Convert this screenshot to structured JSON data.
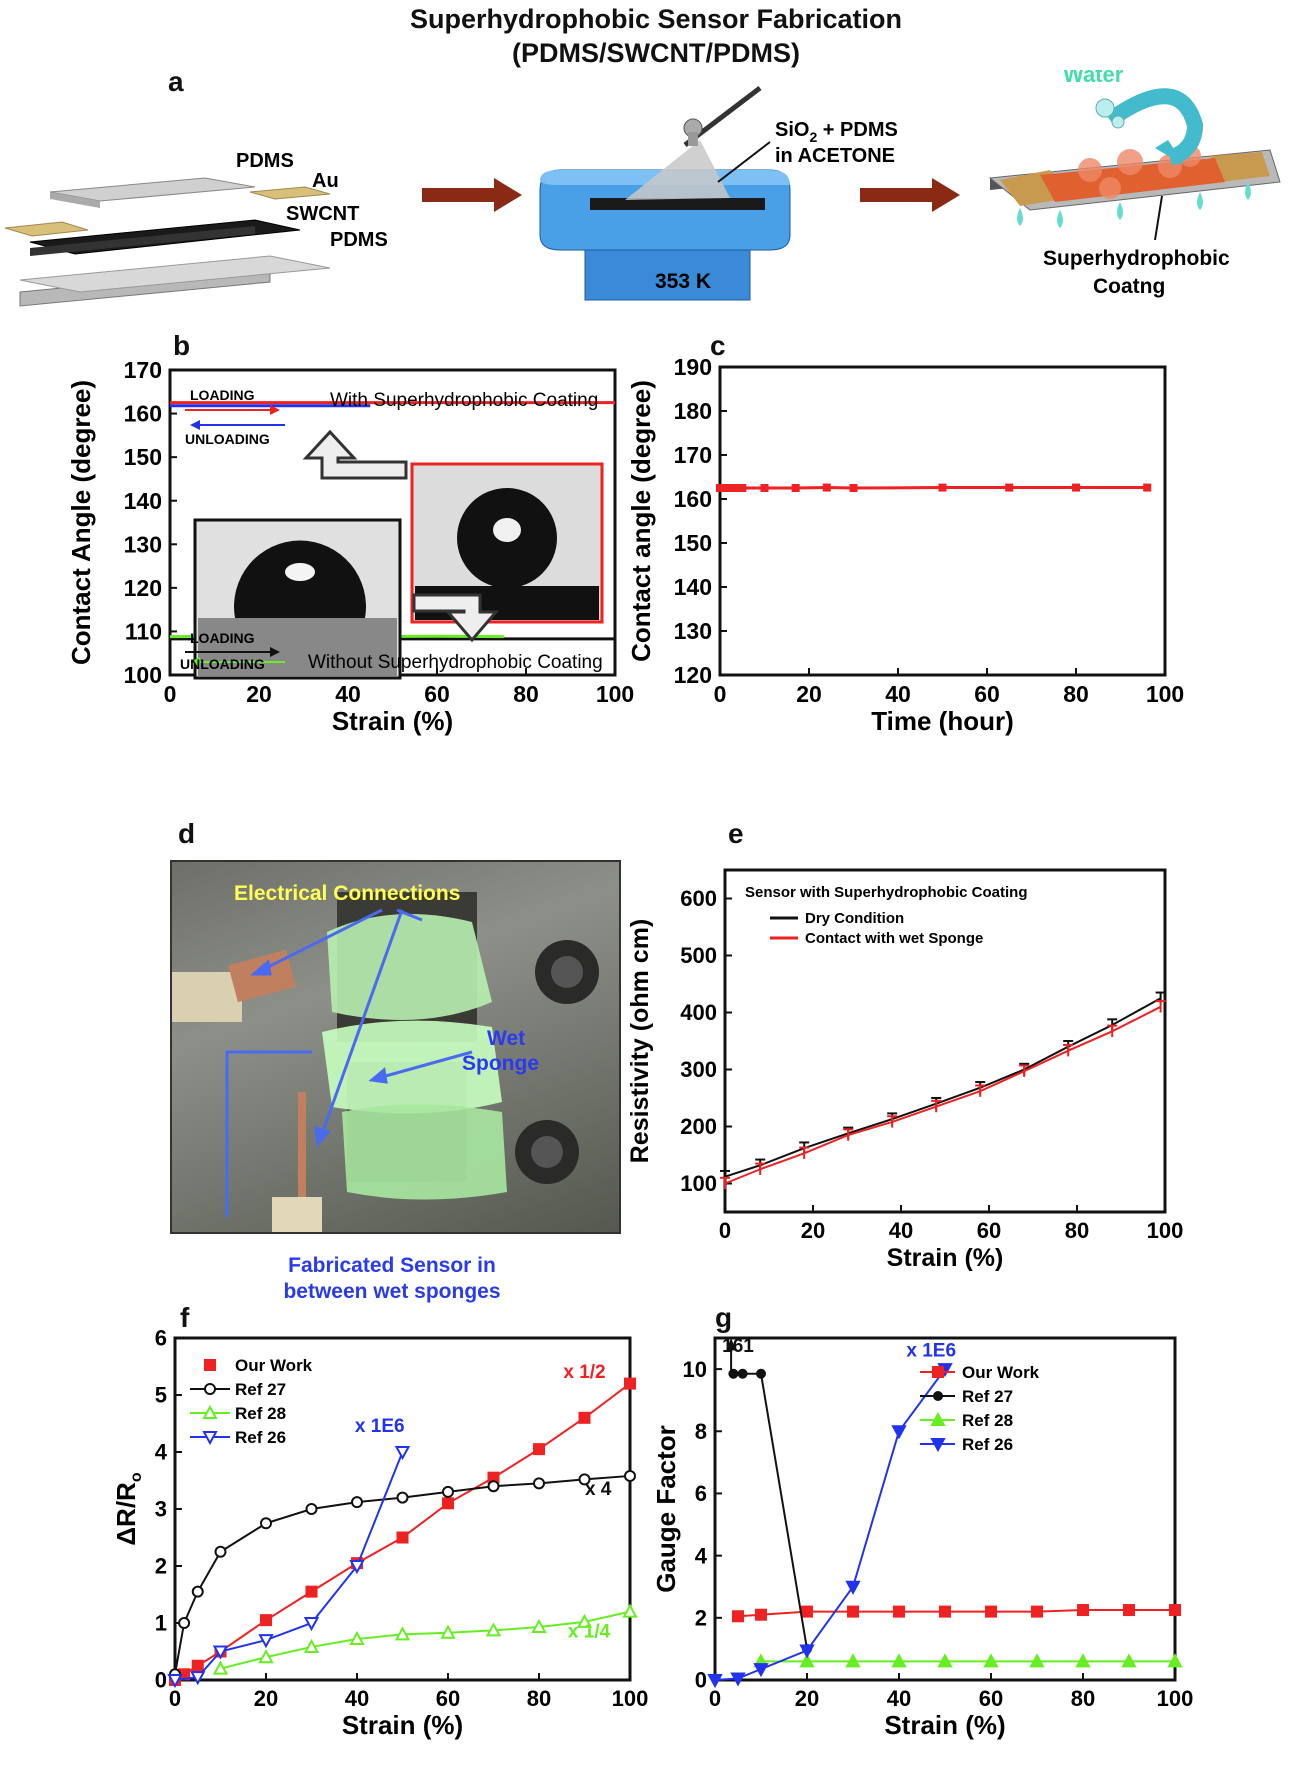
{
  "header": {
    "title_line1": "Superhydrophobic Sensor Fabrication",
    "title_line2": "(PDMS/SWCNT/PDMS)"
  },
  "panel_labels": {
    "a": "a",
    "b": "b",
    "c": "c",
    "d": "d",
    "e": "e",
    "f": "f",
    "g": "g"
  },
  "panel_a": {
    "layer_labels": [
      "PDMS",
      "Au",
      "SWCNT",
      "PDMS"
    ],
    "spray_label_prefix": "SiO",
    "spray_label_sub": "2",
    "spray_label_suffix": " + PDMS",
    "spray_label_line2": "in ACETONE",
    "hotplate_temp": "353 K",
    "water_label": "Water",
    "coating_line1": "Superhydrophobic",
    "coating_line2": "Coatng"
  },
  "panel_d": {
    "label_connections": "Electrical Connections",
    "label_sponge_1": "Wet",
    "label_sponge_2": "Sponge",
    "caption_line1": "Fabricated Sensor in",
    "caption_line2": "between wet sponges"
  },
  "colors": {
    "red": "#ee2222",
    "black": "#111111",
    "green": "#66ee22",
    "blue": "#2233ee",
    "axis": "#111111"
  },
  "chart_data": [
    {
      "id": "b",
      "type": "line",
      "xlabel": "Strain (%)",
      "ylabel": "Contact Angle (degree)",
      "xlim": [
        0,
        100
      ],
      "ylim": [
        100,
        170
      ],
      "xticks": [
        0,
        20,
        40,
        60,
        80,
        100
      ],
      "yticks": [
        100,
        110,
        120,
        130,
        140,
        150,
        160,
        170
      ],
      "series": [
        {
          "color": "#ee2222",
          "x": [
            0,
            100
          ],
          "y": [
            162.5,
            162.5
          ]
        },
        {
          "color": "#2233ee",
          "x": [
            0,
            45
          ],
          "y": [
            161.8,
            161.8
          ]
        },
        {
          "color": "#111111",
          "x": [
            0,
            100
          ],
          "y": [
            108.3,
            108.3
          ]
        },
        {
          "color": "#66ee22",
          "x": [
            0,
            20,
            40,
            60,
            75
          ],
          "y": [
            108.8,
            108.9,
            108.8,
            108.9,
            108.8
          ]
        }
      ],
      "annotations": {
        "top_loading": "LOADING",
        "top_unloading": "UNLOADING",
        "top_text": "With Superhydrophobic Coating",
        "bottom_loading": "LOADING",
        "bottom_unloading": "UNLOADING",
        "bottom_text": "Without Superhydrophobic Coating"
      }
    },
    {
      "id": "c",
      "type": "line",
      "xlabel": "Time (hour)",
      "ylabel": "Contact angle (degree)",
      "xlim": [
        0,
        100
      ],
      "ylim": [
        120,
        190
      ],
      "xticks": [
        0,
        20,
        40,
        60,
        80,
        100
      ],
      "yticks": [
        120,
        130,
        140,
        150,
        160,
        170,
        180,
        190
      ],
      "series": [
        {
          "color": "#ee2222",
          "x": [
            0,
            1,
            2,
            3,
            4,
            5,
            10,
            17,
            24,
            30,
            50,
            65,
            80,
            96
          ],
          "y": [
            162.5,
            162.5,
            162.5,
            162.5,
            162.5,
            162.5,
            162.5,
            162.5,
            162.6,
            162.5,
            162.6,
            162.6,
            162.6,
            162.6
          ]
        }
      ]
    },
    {
      "id": "e",
      "type": "line",
      "xlabel": "Strain (%)",
      "ylabel": "Resistivity (ohm cm)",
      "xlim": [
        0,
        100
      ],
      "ylim": [
        50,
        650
      ],
      "xticks": [
        0,
        20,
        40,
        60,
        80,
        100
      ],
      "yticks": [
        100,
        200,
        300,
        400,
        500,
        600
      ],
      "legend_title": "Sensor with Superhydrophobic Coating",
      "series": [
        {
          "name": "Dry Condition",
          "color": "#111111",
          "x": [
            0,
            8,
            18,
            28,
            38,
            48,
            58,
            68,
            78,
            88,
            99
          ],
          "y": [
            112,
            132,
            162,
            188,
            213,
            240,
            268,
            300,
            340,
            378,
            425
          ]
        },
        {
          "name": "Contact with wet Sponge",
          "color": "#ee2222",
          "x": [
            0,
            8,
            18,
            28,
            38,
            48,
            58,
            68,
            78,
            88,
            99
          ],
          "y": [
            100,
            125,
            153,
            185,
            208,
            235,
            262,
            297,
            333,
            367,
            410
          ]
        }
      ]
    },
    {
      "id": "f",
      "type": "line",
      "xlabel": "Strain (%)",
      "ylabel": "ΔR/R",
      "ylabel_sub": "o",
      "xlim": [
        0,
        100
      ],
      "ylim": [
        0,
        6
      ],
      "xticks": [
        0,
        20,
        40,
        60,
        80,
        100
      ],
      "yticks": [
        0,
        1,
        2,
        3,
        4,
        5,
        6
      ],
      "series": [
        {
          "name": "Our Work",
          "color": "#ee2222",
          "marker": "square",
          "x": [
            0,
            2,
            5,
            10,
            20,
            30,
            40,
            50,
            60,
            70,
            80,
            90,
            100
          ],
          "y": [
            0,
            0.1,
            0.25,
            0.5,
            1.05,
            1.55,
            2.05,
            2.5,
            3.1,
            3.55,
            4.05,
            4.6,
            5.2
          ]
        },
        {
          "name": "Ref 27",
          "color": "#111111",
          "marker": "circle",
          "x": [
            0,
            2,
            5,
            10,
            20,
            30,
            40,
            50,
            60,
            70,
            80,
            90,
            100
          ],
          "y": [
            0.1,
            1.0,
            1.55,
            2.25,
            2.75,
            3.0,
            3.12,
            3.2,
            3.3,
            3.4,
            3.45,
            3.52,
            3.58
          ]
        },
        {
          "name": "Ref 28",
          "color": "#66ee22",
          "marker": "triangle",
          "x": [
            10,
            20,
            30,
            40,
            50,
            60,
            70,
            80,
            90,
            100
          ],
          "y": [
            0.2,
            0.4,
            0.58,
            0.72,
            0.8,
            0.83,
            0.87,
            0.93,
            1.02,
            1.2
          ]
        },
        {
          "name": "Ref 26",
          "color": "#2233ee",
          "marker": "triangle-down",
          "x": [
            0,
            5,
            10,
            20,
            30,
            40,
            50
          ],
          "y": [
            0,
            0.05,
            0.5,
            0.7,
            1.0,
            2.0,
            4.0
          ]
        }
      ],
      "annotations": [
        {
          "text": "x 1/2",
          "color": "#ee2222",
          "x": 90,
          "y": 5.3
        },
        {
          "text": "x 4",
          "color": "#111111",
          "x": 93,
          "y": 3.25
        },
        {
          "text": "x 1/4",
          "color": "#66ee22",
          "x": 91,
          "y": 0.75
        },
        {
          "text": "x 1E6",
          "color": "#2233ee",
          "x": 45,
          "y": 4.35
        }
      ]
    },
    {
      "id": "g",
      "type": "line",
      "xlabel": "Strain (%)",
      "ylabel": "Gauge Factor",
      "xlim": [
        0,
        100
      ],
      "ylim": [
        0,
        11
      ],
      "xticks": [
        0,
        20,
        40,
        60,
        80,
        100
      ],
      "yticks": [
        0,
        2,
        4,
        6,
        8,
        10
      ],
      "series": [
        {
          "name": "Our Work",
          "color": "#ee2222",
          "marker": "square",
          "x": [
            5,
            10,
            20,
            30,
            40,
            50,
            60,
            70,
            80,
            90,
            100
          ],
          "y": [
            2.05,
            2.1,
            2.2,
            2.2,
            2.2,
            2.2,
            2.2,
            2.2,
            2.25,
            2.25,
            2.25
          ]
        },
        {
          "name": "Ref 27",
          "color": "#111111",
          "marker": "circle",
          "x": [
            4,
            6,
            10,
            20
          ],
          "y": [
            9.85,
            9.85,
            9.85,
            1.0
          ]
        },
        {
          "name": "Ref 28",
          "color": "#66ee22",
          "marker": "triangle",
          "x": [
            10,
            20,
            30,
            40,
            50,
            60,
            70,
            80,
            90,
            100
          ],
          "y": [
            0.6,
            0.6,
            0.6,
            0.6,
            0.6,
            0.6,
            0.6,
            0.6,
            0.6,
            0.6
          ]
        },
        {
          "name": "Ref 26",
          "color": "#2233ee",
          "marker": "triangle-down",
          "x": [
            0,
            5,
            10,
            20,
            30,
            40,
            50
          ],
          "y": [
            0,
            0.05,
            0.35,
            0.95,
            3.0,
            8.0,
            10.0
          ]
        }
      ],
      "annotations": [
        {
          "text": "161",
          "color": "#111111",
          "x": 5,
          "y": 10.55
        },
        {
          "text": "x 1E6",
          "color": "#2233ee",
          "x": 47,
          "y": 10.4
        }
      ]
    }
  ]
}
